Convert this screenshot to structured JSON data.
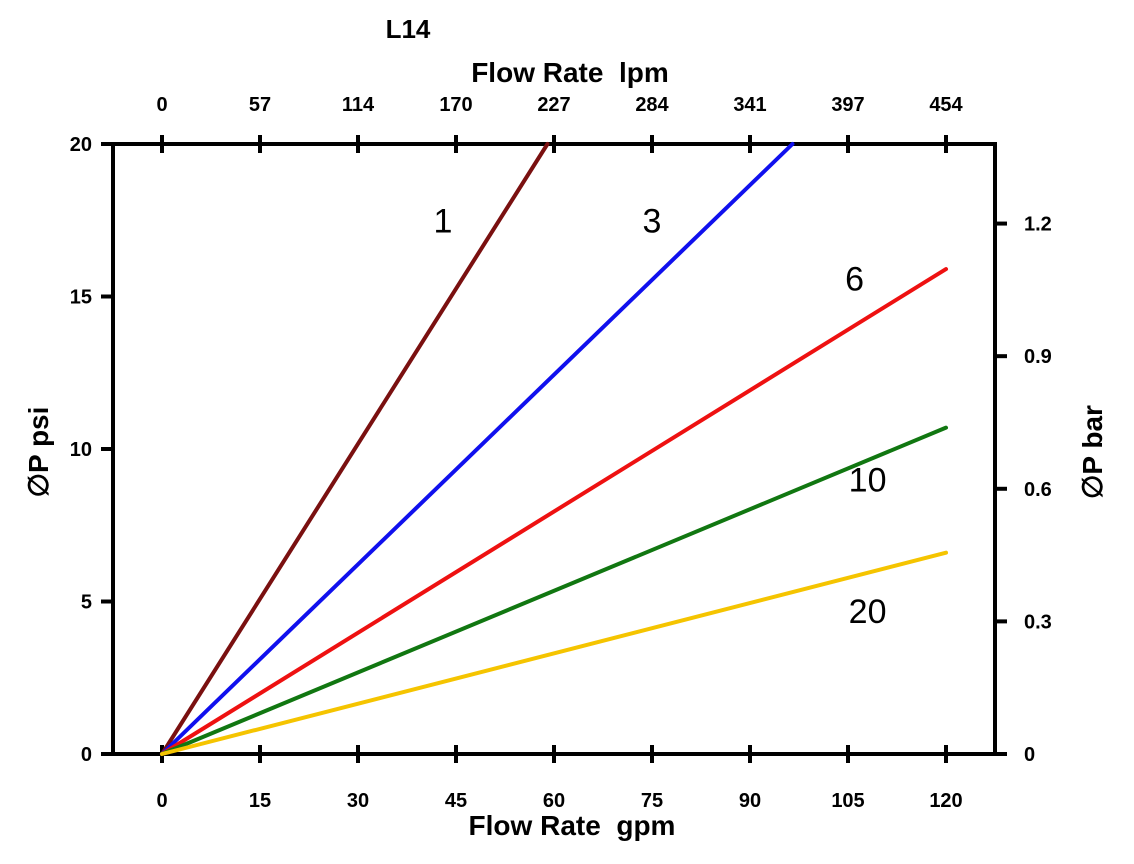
{
  "chart_data": {
    "type": "line",
    "title": "L14",
    "xlabel": "Flow Rate  gpm",
    "x2label": "Flow Rate  lpm",
    "ylabel": "∅P psi",
    "y2label": "∅P bar",
    "xlim": [
      -7.5,
      127.5
    ],
    "ylim": [
      0,
      20
    ],
    "x_ticks": [
      0,
      15,
      30,
      45,
      60,
      75,
      90,
      105,
      120
    ],
    "x_tick_labels": [
      "0",
      "15",
      "30",
      "45",
      "60",
      "75",
      "90",
      "105",
      "120"
    ],
    "x2_tick_labels": [
      "0",
      "57",
      "114",
      "170",
      "227",
      "284",
      "341",
      "397",
      "454"
    ],
    "y_ticks": [
      0,
      5,
      10,
      15,
      20
    ],
    "y_tick_labels": [
      "0",
      "5",
      "10",
      "15",
      "20"
    ],
    "y2_ticks": [
      0,
      0.3,
      0.6,
      0.9,
      1.2
    ],
    "y2_tick_labels": [
      "0",
      "0.3",
      "0.6",
      "0.9",
      "1.2"
    ],
    "y2_lim": [
      0,
      1.38
    ],
    "grid": false,
    "series": [
      {
        "name": "1",
        "color": "#7a1010",
        "x": [
          0,
          59
        ],
        "y": [
          0,
          20
        ],
        "label_at": [
          43,
          17.1
        ]
      },
      {
        "name": "3",
        "color": "#1010ee",
        "x": [
          0,
          96.5
        ],
        "y": [
          0,
          20
        ],
        "label_at": [
          75,
          17.1
        ]
      },
      {
        "name": "6",
        "color": "#ee1111",
        "x": [
          0,
          120
        ],
        "y": [
          0,
          15.9
        ],
        "label_at": [
          106,
          15.2
        ]
      },
      {
        "name": "10",
        "color": "#117711",
        "x": [
          0,
          120
        ],
        "y": [
          0,
          10.7
        ],
        "label_at": [
          108,
          8.6
        ]
      },
      {
        "name": "20",
        "color": "#f5c400",
        "x": [
          0,
          120
        ],
        "y": [
          0,
          6.6
        ],
        "label_at": [
          108,
          4.3
        ]
      }
    ]
  }
}
